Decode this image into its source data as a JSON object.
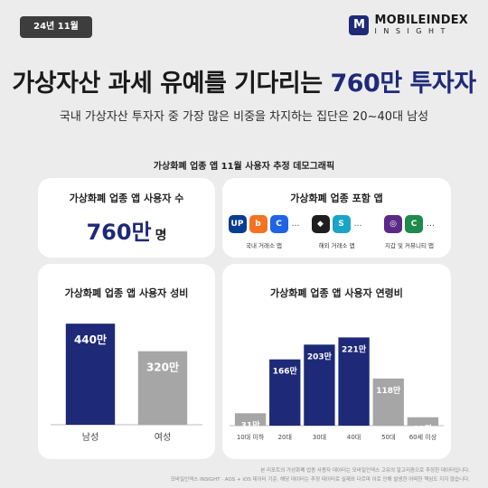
{
  "header": {
    "date_badge": "24년 11월",
    "logo_main": "MOBILEINDEX",
    "logo_sub": "INSIGHT",
    "logo_mark": "M"
  },
  "headline": {
    "title_prefix": "가상자산 과세 유예를 기다리는 ",
    "title_highlight": "760만 투자자",
    "subtitle": "국내 가상자산 투자자 중 가장 많은 비중을 차지하는 집단은 20~40대 남성"
  },
  "section_title": "가상화폐 업종 앱 11월 사용자 추정 데모그래픽",
  "users_panel": {
    "title": "가상화폐 업종 앱 사용자 수",
    "value": "760만",
    "unit": "명"
  },
  "apps_panel": {
    "title": "가상화폐 업종 포함 앱",
    "groups": [
      {
        "label": "국내 거래소 앱",
        "icons": [
          {
            "name": "upbit-icon",
            "glyph": "UP",
            "color": "#0a3d91"
          },
          {
            "name": "bithumb-icon",
            "glyph": "b",
            "color": "#f37321"
          },
          {
            "name": "coinone-icon",
            "glyph": "C",
            "color": "#1f63e6"
          }
        ],
        "ellipsis": "…"
      },
      {
        "label": "해외 거래소 앱",
        "icons": [
          {
            "name": "binance-icon",
            "glyph": "◆",
            "color": "#1e1e1e"
          },
          {
            "name": "bybit-icon",
            "glyph": "S",
            "color": "#1aa5c8"
          }
        ],
        "ellipsis": "…"
      },
      {
        "label": "지갑 및 커뮤니티 앱",
        "icons": [
          {
            "name": "wallet-icon",
            "glyph": "◎",
            "color": "#5b2a86"
          },
          {
            "name": "community-icon",
            "glyph": "C",
            "color": "#1f8a4c"
          }
        ],
        "ellipsis": "…"
      }
    ]
  },
  "colors": {
    "primary": "#1e2a78",
    "secondary": "#a6a6a6",
    "background": "#ececec",
    "panel": "#ffffff"
  },
  "chart_data": [
    {
      "type": "bar",
      "title": "가상화폐 업종 앱 사용자 성비",
      "categories": [
        "남성",
        "여성"
      ],
      "values": [
        440,
        320
      ],
      "data_labels": [
        "440만",
        "320만"
      ],
      "colors": [
        "#1e2a78",
        "#a6a6a6"
      ],
      "ylim": [
        0,
        480
      ],
      "grid": false
    },
    {
      "type": "bar",
      "title": "가상화폐 업종 앱 사용자 연령비",
      "categories": [
        "10대 이하",
        "20대",
        "30대",
        "40대",
        "50대",
        "60세 이상"
      ],
      "values": [
        31,
        166,
        203,
        221,
        118,
        21
      ],
      "data_labels": [
        "31만",
        "166만",
        "203만",
        "221만",
        "118만",
        "21만"
      ],
      "colors": [
        "#a6a6a6",
        "#1e2a78",
        "#1e2a78",
        "#1e2a78",
        "#a6a6a6",
        "#a6a6a6"
      ],
      "ylim": [
        0,
        240
      ],
      "grid": false
    }
  ],
  "footnote": {
    "line1": "본 리포트의 가상화폐 업종 사용자 데이터는 모바일인덱스 고유의 알고리즘으로 추정한 데이터입니다.",
    "line2": "모바일인덱스 INSIGHT · AOS + iOS 데이터 기준. 해당 데이터는 추정 데이터로 실제와 다르며 이로 인해 발생한 어떠한 책임도 지지 않습니다."
  }
}
